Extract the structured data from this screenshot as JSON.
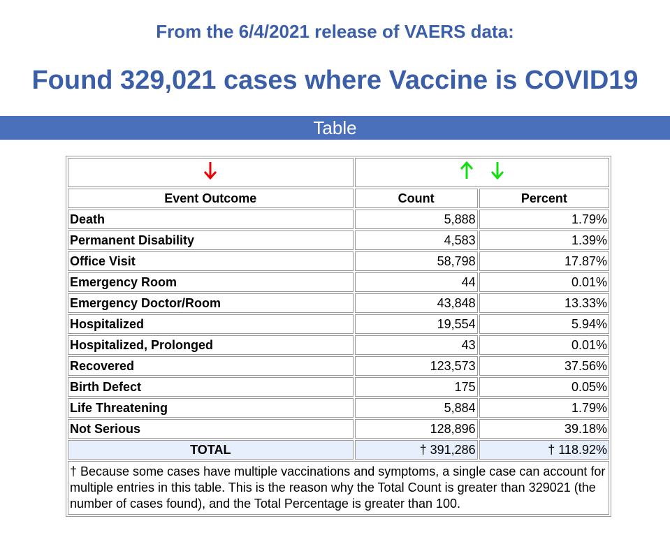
{
  "header": {
    "subtitle": "From the 6/4/2021 release of VAERS data:",
    "title": "Found 329,021 cases where Vaccine is COVID19"
  },
  "banner": "Table",
  "table": {
    "headers": [
      "Event Outcome",
      "Count",
      "Percent"
    ],
    "rows": [
      [
        "Death",
        "5,888",
        "1.79%"
      ],
      [
        "Permanent Disability",
        "4,583",
        "1.39%"
      ],
      [
        "Office Visit",
        "58,798",
        "17.87%"
      ],
      [
        "Emergency Room",
        "44",
        "0.01%"
      ],
      [
        "Emergency Doctor/Room",
        "43,848",
        "13.33%"
      ],
      [
        "Hospitalized",
        "19,554",
        "5.94%"
      ],
      [
        "Hospitalized, Prolonged",
        "43",
        "0.01%"
      ],
      [
        "Recovered",
        "123,573",
        "37.56%"
      ],
      [
        "Birth Defect",
        "175",
        "0.05%"
      ],
      [
        "Life Threatening",
        "5,884",
        "1.79%"
      ],
      [
        "Not Serious",
        "128,896",
        "39.18%"
      ]
    ],
    "total": [
      "TOTAL",
      "† 391,286",
      "† 118.92%"
    ],
    "footnote": "† Because some cases have multiple vaccinations and symptoms, a single case can account for multiple entries in this table. This is the reason why the Total Count is greater than 329021 (the number of cases found), and the Total Percentage is greater than 100."
  }
}
